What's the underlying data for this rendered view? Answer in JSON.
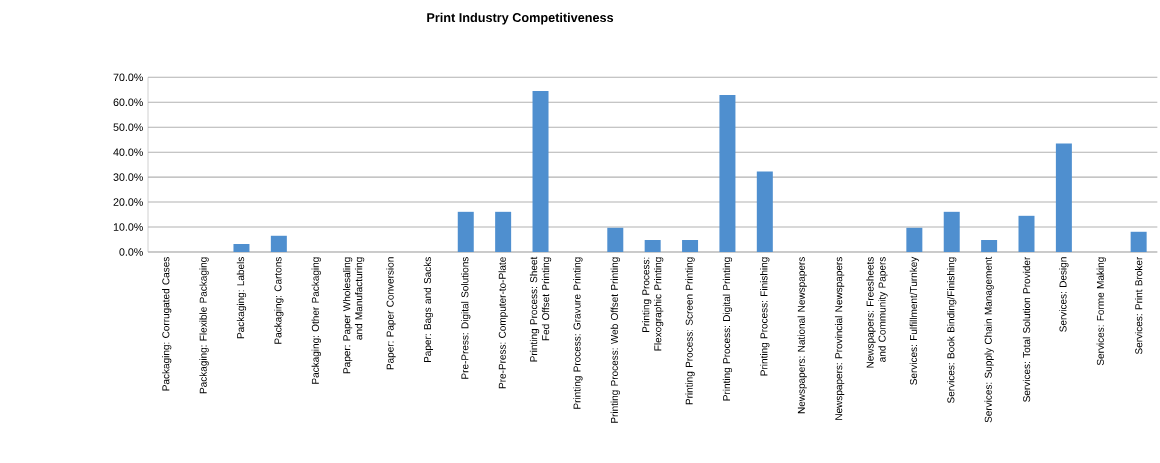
{
  "chart_data": {
    "type": "bar",
    "title": "Print Industry Competitiveness",
    "categories": [
      "Packaging: Corrugated Cases",
      "Packaging: Flexible Packaging",
      "Packaging: Labels",
      "Packaging: Cartons",
      "Packaging: Other Packaging",
      "Paper: Paper Wholesaling and Manufacturing",
      "Paper: Paper Conversion",
      "Paper: Bags and Sacks",
      "Pre-Press: Digital Solutions",
      "Pre-Press: Computer-to-Plate",
      "Printing Process: Sheet Fed Offset Printing",
      "Printing Process: Gravure Printing",
      "Printing Process: Web Offset Printing",
      "Printing Process: Flexographic Printing",
      "Printing Process: Screen Printing",
      "Printing Process: Digital Printing",
      "Printing Process: Finishing",
      "Newspapers: National Newspapers",
      "Newspapers: Provincial Newspapers",
      "Newspapers: Freesheets and Community Papers",
      "Services: Fulfillment/Turnkey",
      "Services: Book Binding/Finishing",
      "Services: Supply Chain Management",
      "Services: Total Solution Provider",
      "Services: Design",
      "Services: Forme Making",
      "Services: Print Broker"
    ],
    "values": [
      0,
      0,
      3.2,
      6.5,
      0,
      0,
      0,
      0,
      16.1,
      16.1,
      64.5,
      0,
      9.7,
      4.8,
      4.8,
      62.9,
      32.3,
      0,
      0,
      0,
      9.7,
      16.1,
      4.8,
      14.5,
      43.5,
      0,
      8.1
    ],
    "color": "#4f8fcf",
    "ylim": [
      0,
      70
    ],
    "yticks": [
      {
        "value": 0,
        "label": "0.0%"
      },
      {
        "value": 10,
        "label": "10.0%"
      },
      {
        "value": 20,
        "label": "20.0%"
      },
      {
        "value": 30,
        "label": "30.0%"
      },
      {
        "value": 40,
        "label": "40.0%"
      },
      {
        "value": 50,
        "label": "50.0%"
      },
      {
        "value": 60,
        "label": "60.0%"
      },
      {
        "value": 70,
        "label": "70.0%"
      }
    ],
    "grid": "y"
  }
}
